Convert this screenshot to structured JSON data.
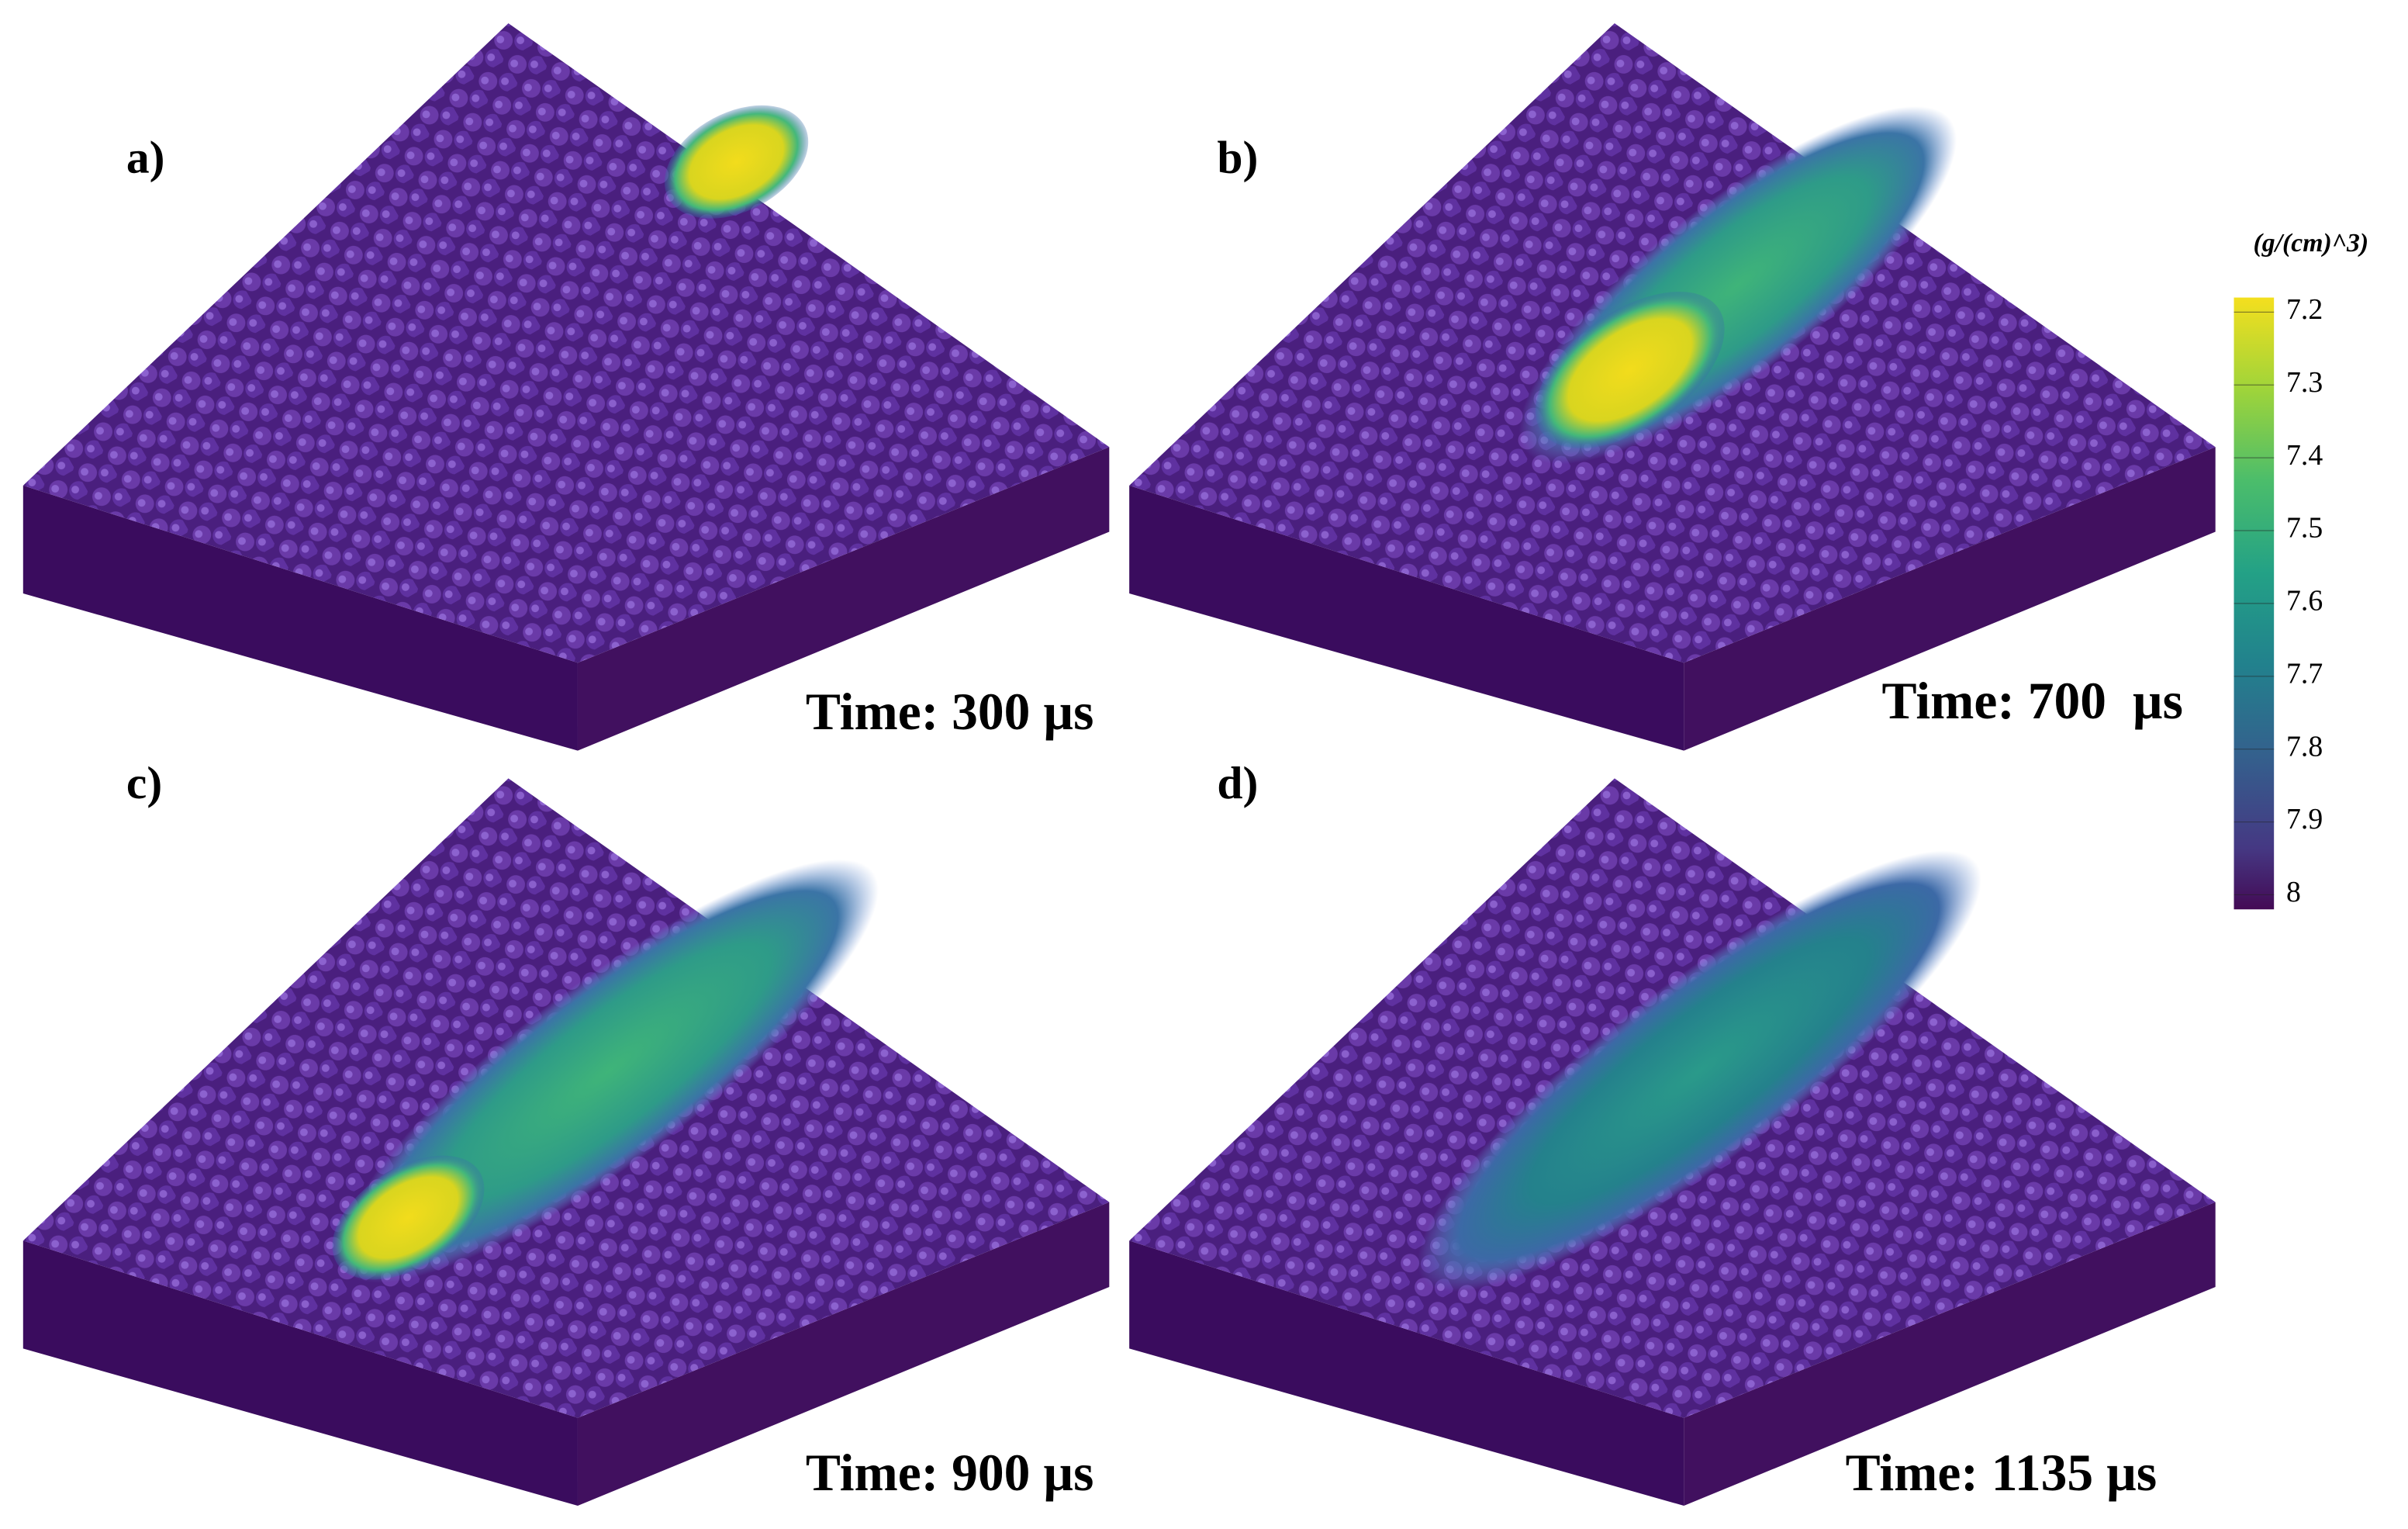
{
  "panels": [
    {
      "label": "a)",
      "time": "Time: 300 µs"
    },
    {
      "label": "b)",
      "time": "Time: 700  µs"
    },
    {
      "label": "c)",
      "time": "Time: 900 µs"
    },
    {
      "label": "d)",
      "time": "Time: 1135 µs"
    }
  ],
  "colorbar": {
    "title": "(g/(cm)^3)",
    "lim": [
      7.18,
      8.02
    ],
    "ticks": [
      7.2,
      7.3,
      7.4,
      7.5,
      7.6,
      7.7,
      7.8,
      7.9,
      8
    ]
  }
}
